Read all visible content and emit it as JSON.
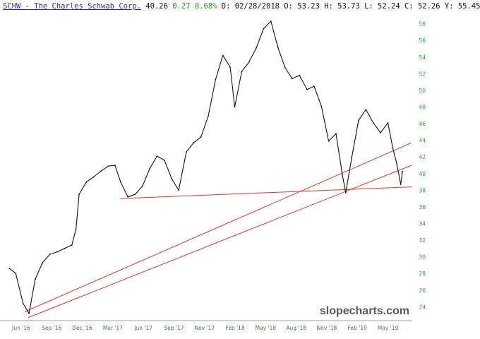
{
  "header": {
    "symbol_name": "SCHW - The Charles Schwab Corp.",
    "last": "40.26",
    "change": "0.27",
    "change_pct": "0.68%",
    "ohlc": "D: 02/28/2018 O: 53.23 H: 53.73 L: 52.24 C: 52.26 Y: 55.45"
  },
  "watermark": "slopecharts.com",
  "colors": {
    "price": "#111111",
    "trendline": "#e8332a",
    "axis_text": "#2e9e2e",
    "x_text": "#4a7a4a",
    "axis_line": "#999999"
  },
  "chart_data": {
    "type": "line",
    "title": "SCHW - The Charles Schwab Corp.",
    "x_tick_labels": [
      "Jun '16",
      "Sep '16",
      "Dec '16",
      "Mar '17",
      "Jun '17",
      "Sep '17",
      "Nov '17",
      "Feb '18",
      "May '18",
      "Aug '18",
      "Nov '18",
      "Feb '19",
      "May '19"
    ],
    "y_ticks": [
      24,
      26,
      28,
      30,
      32,
      34,
      36,
      38,
      40,
      42,
      44,
      46,
      48,
      50,
      52,
      54,
      56,
      58
    ],
    "ylim": [
      22.5,
      59.5
    ],
    "series": [
      {
        "x": [
          "2016-05-02",
          "2016-05-20",
          "2016-06-10",
          "2016-06-27",
          "2016-07-15",
          "2016-08-05",
          "2016-08-26",
          "2016-09-16",
          "2016-10-07",
          "2016-10-28",
          "2016-11-09",
          "2016-11-18",
          "2016-12-09",
          "2016-12-30",
          "2017-01-20",
          "2017-02-10",
          "2017-03-01",
          "2017-03-17",
          "2017-04-07",
          "2017-04-28",
          "2017-05-19",
          "2017-06-09",
          "2017-06-30",
          "2017-07-21",
          "2017-08-11",
          "2017-08-31",
          "2017-09-22",
          "2017-10-13",
          "2017-11-03",
          "2017-11-24",
          "2017-12-15",
          "2018-01-05",
          "2018-01-26",
          "2018-02-08",
          "2018-02-28",
          "2018-03-21",
          "2018-04-11",
          "2018-05-02",
          "2018-05-23",
          "2018-06-12",
          "2018-07-02",
          "2018-07-23",
          "2018-08-13",
          "2018-09-04",
          "2018-09-24",
          "2018-10-15",
          "2018-11-05",
          "2018-11-26",
          "2018-12-14",
          "2018-12-24",
          "2019-01-10",
          "2019-01-30",
          "2019-02-20",
          "2019-03-13",
          "2019-04-03",
          "2019-04-24",
          "2019-05-08",
          "2019-05-20",
          "2019-05-31",
          "2019-06-05"
        ],
        "y": [
          28.6,
          28.0,
          24.4,
          23.2,
          27.3,
          29.3,
          30.3,
          30.6,
          31.0,
          31.4,
          33.3,
          37.5,
          39.0,
          39.6,
          40.3,
          40.9,
          41.0,
          39.0,
          37.2,
          37.5,
          38.5,
          40.6,
          42.1,
          41.6,
          39.4,
          38.0,
          42.6,
          43.7,
          44.4,
          46.9,
          51.3,
          54.2,
          52.8,
          48.0,
          52.26,
          53.4,
          55.1,
          57.4,
          58.3,
          55.2,
          52.8,
          51.4,
          51.8,
          50.1,
          50.5,
          48.1,
          43.9,
          44.8,
          39.9,
          37.7,
          41.9,
          46.4,
          47.7,
          46.1,
          44.9,
          46.1,
          43.1,
          41.1,
          38.7,
          40.26
        ]
      }
    ],
    "trendlines": [
      {
        "from": [
          "2017-03-15",
          37.0
        ],
        "to": [
          "2019-07-01",
          38.4
        ]
      },
      {
        "from": [
          "2016-06-15",
          23.4
        ],
        "to": [
          "2019-07-01",
          43.7
        ]
      },
      {
        "from": [
          "2016-06-25",
          22.7
        ],
        "to": [
          "2019-07-01",
          41.0
        ]
      }
    ]
  }
}
